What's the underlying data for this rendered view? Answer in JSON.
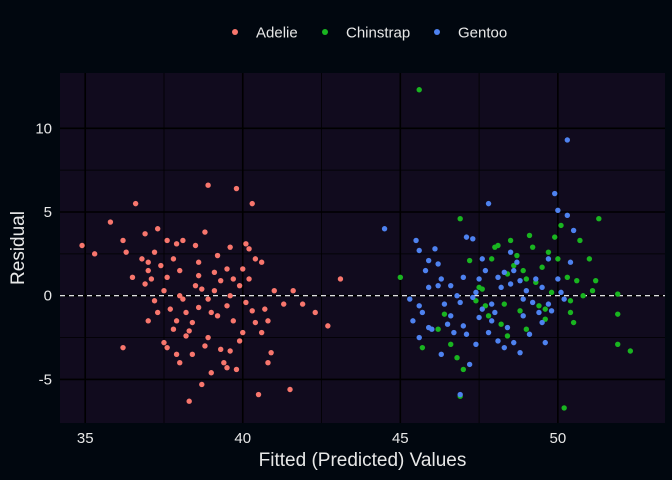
{
  "chart_data": {
    "type": "scatter",
    "xlabel": "Fitted (Predicted) Values",
    "ylabel": "Residual",
    "xlim": [
      34.2,
      53.4
    ],
    "ylim": [
      -7.6,
      13.3
    ],
    "x_ticks": [
      35,
      40,
      45,
      50
    ],
    "y_ticks": [
      -5,
      0,
      5,
      10
    ],
    "x_tick_labels": [
      "35",
      "40",
      "45",
      "50"
    ],
    "y_tick_labels": [
      "-5",
      "0",
      "5",
      "10"
    ],
    "grid": true,
    "legend_position": "top",
    "reference_line": {
      "y": 0,
      "style": "dashed",
      "color": "#ffffff"
    },
    "colors": {
      "page_background": "#01070f",
      "panel_background": "#110b1e",
      "grid": "#000000",
      "text": "#e8e8e8"
    },
    "series": [
      {
        "name": "Adelie",
        "color": "#f8766d",
        "points": [
          [
            34.9,
            3.0
          ],
          [
            35.3,
            2.5
          ],
          [
            35.8,
            4.4
          ],
          [
            36.2,
            3.3
          ],
          [
            36.6,
            5.5
          ],
          [
            36.3,
            2.6
          ],
          [
            36.8,
            2.2
          ],
          [
            37.1,
            1.0
          ],
          [
            37.0,
            2.0
          ],
          [
            36.9,
            3.7
          ],
          [
            37.3,
            4.0
          ],
          [
            37.6,
            3.3
          ],
          [
            37.9,
            3.1
          ],
          [
            36.2,
            -3.1
          ],
          [
            36.5,
            1.1
          ],
          [
            36.9,
            0.7
          ],
          [
            37.2,
            -0.3
          ],
          [
            37.5,
            0.3
          ],
          [
            37.7,
            -0.8
          ],
          [
            37.9,
            -1.5
          ],
          [
            37.3,
            -1.0
          ],
          [
            37.4,
            1.8
          ],
          [
            37.8,
            2.2
          ],
          [
            38.0,
            1.5
          ],
          [
            38.1,
            -0.2
          ],
          [
            37.8,
            -2.0
          ],
          [
            37.6,
            -3.1
          ],
          [
            37.9,
            -3.5
          ],
          [
            38.2,
            -2.4
          ],
          [
            38.4,
            -1.6
          ],
          [
            38.6,
            -0.7
          ],
          [
            38.9,
            -0.2
          ],
          [
            39.1,
            0.3
          ],
          [
            39.3,
            0.9
          ],
          [
            38.5,
            3.0
          ],
          [
            38.8,
            3.8
          ],
          [
            38.9,
            6.6
          ],
          [
            38.6,
            2.0
          ],
          [
            39.2,
            2.4
          ],
          [
            39.5,
            1.6
          ],
          [
            38.3,
            -6.3
          ],
          [
            38.7,
            -5.3
          ],
          [
            39.0,
            -4.6
          ],
          [
            39.4,
            -4.0
          ],
          [
            39.6,
            -3.3
          ],
          [
            39.8,
            -4.4
          ],
          [
            39.9,
            -2.7
          ],
          [
            39.7,
            -1.5
          ],
          [
            39.5,
            -0.6
          ],
          [
            39.9,
            0.6
          ],
          [
            40.2,
            1.0
          ],
          [
            40.4,
            2.2
          ],
          [
            40.1,
            3.1
          ],
          [
            39.6,
            2.9
          ],
          [
            39.8,
            6.4
          ],
          [
            40.3,
            5.5
          ],
          [
            40.0,
            1.6
          ],
          [
            40.1,
            -0.4
          ],
          [
            40.4,
            -1.6
          ],
          [
            40.0,
            -2.2
          ],
          [
            40.5,
            -5.9
          ],
          [
            40.8,
            -4.0
          ],
          [
            40.9,
            -3.4
          ],
          [
            40.6,
            -2.2
          ],
          [
            40.7,
            -0.8
          ],
          [
            41.0,
            0.3
          ],
          [
            41.3,
            -0.5
          ],
          [
            41.6,
            0.3
          ],
          [
            41.9,
            -0.5
          ],
          [
            42.3,
            -1.0
          ],
          [
            42.7,
            -1.8
          ],
          [
            43.1,
            1.0
          ],
          [
            41.5,
            -5.6
          ],
          [
            40.2,
            2.8
          ],
          [
            40.6,
            2.0
          ],
          [
            37.0,
            -1.5
          ],
          [
            37.2,
            2.6
          ],
          [
            38.0,
            -4.0
          ],
          [
            38.6,
            1.2
          ],
          [
            39.0,
            -1.0
          ],
          [
            38.3,
            -2.1
          ],
          [
            38.1,
            3.3
          ],
          [
            37.5,
            -2.8
          ],
          [
            38.8,
            -3.0
          ],
          [
            39.2,
            -1.2
          ],
          [
            38.5,
            0.6
          ],
          [
            37.0,
            1.5
          ],
          [
            39.7,
            1.0
          ],
          [
            40.3,
            -0.9
          ],
          [
            38.7,
            0.4
          ],
          [
            39.3,
            -3.2
          ],
          [
            39.1,
            1.4
          ],
          [
            38.4,
            -3.5
          ],
          [
            37.6,
            1.1
          ],
          [
            40.8,
            -1.5
          ],
          [
            38.2,
            -1.0
          ],
          [
            38.9,
            -2.5
          ],
          [
            39.5,
            -4.3
          ],
          [
            38.0,
            0.0
          ],
          [
            39.6,
            0.0
          ]
        ]
      },
      {
        "name": "Chinstrap",
        "color": "#19b520",
        "points": [
          [
            45.6,
            12.3
          ],
          [
            45.0,
            1.1
          ],
          [
            45.7,
            -3.1
          ],
          [
            46.2,
            -2.0
          ],
          [
            46.6,
            -2.9
          ],
          [
            46.9,
            4.6
          ],
          [
            46.8,
            -3.7
          ],
          [
            47.0,
            -4.4
          ],
          [
            46.9,
            -6.0
          ],
          [
            47.2,
            2.1
          ],
          [
            47.5,
            0.5
          ],
          [
            47.7,
            -0.6
          ],
          [
            47.9,
            2.2
          ],
          [
            48.1,
            3.0
          ],
          [
            48.2,
            -1.7
          ],
          [
            48.3,
            -0.5
          ],
          [
            48.4,
            1.3
          ],
          [
            48.5,
            3.3
          ],
          [
            48.6,
            1.8
          ],
          [
            48.7,
            2.4
          ],
          [
            48.9,
            1.5
          ],
          [
            49.0,
            -2.0
          ],
          [
            49.1,
            3.6
          ],
          [
            49.2,
            2.9
          ],
          [
            49.4,
            -0.6
          ],
          [
            49.5,
            1.7
          ],
          [
            49.6,
            -1.4
          ],
          [
            49.8,
            0.2
          ],
          [
            49.9,
            3.5
          ],
          [
            50.0,
            2.2
          ],
          [
            50.1,
            4.2
          ],
          [
            50.2,
            -6.7
          ],
          [
            50.4,
            -1.0
          ],
          [
            50.5,
            -1.6
          ],
          [
            50.6,
            0.9
          ],
          [
            50.7,
            3.3
          ],
          [
            51.0,
            2.2
          ],
          [
            51.3,
            4.6
          ],
          [
            51.2,
            0.9
          ],
          [
            51.9,
            0.1
          ],
          [
            51.9,
            -1.1
          ],
          [
            51.9,
            -2.9
          ],
          [
            52.3,
            -3.3
          ],
          [
            50.4,
            -0.3
          ],
          [
            49.0,
            1.0
          ],
          [
            48.8,
            -0.9
          ],
          [
            47.8,
            -1.2
          ],
          [
            47.4,
            -0.3
          ],
          [
            50.8,
            0.0
          ],
          [
            49.7,
            2.6
          ],
          [
            48.4,
            -2.4
          ],
          [
            47.6,
            0.4
          ],
          [
            50.3,
            1.1
          ],
          [
            49.3,
            0.8
          ],
          [
            48.0,
            2.9
          ],
          [
            51.1,
            0.3
          ],
          [
            46.4,
            -1.1
          ],
          [
            49.6,
            -0.8
          ]
        ]
      },
      {
        "name": "Gentoo",
        "color": "#4e82f0",
        "points": [
          [
            44.5,
            4.0
          ],
          [
            45.3,
            -0.2
          ],
          [
            45.6,
            -0.6
          ],
          [
            45.6,
            2.7
          ],
          [
            45.5,
            3.3
          ],
          [
            45.6,
            -2.5
          ],
          [
            45.7,
            -1.0
          ],
          [
            45.8,
            1.5
          ],
          [
            45.9,
            0.5
          ],
          [
            46.1,
            2.8
          ],
          [
            46.2,
            1.9
          ],
          [
            46.3,
            -3.5
          ],
          [
            46.5,
            -1.7
          ],
          [
            46.6,
            -1.2
          ],
          [
            46.8,
            0.0
          ],
          [
            46.9,
            -0.4
          ],
          [
            47.0,
            1.1
          ],
          [
            47.1,
            -2.3
          ],
          [
            47.2,
            -4.1
          ],
          [
            47.3,
            3.4
          ],
          [
            47.4,
            0.2
          ],
          [
            47.5,
            1.0
          ],
          [
            47.6,
            2.2
          ],
          [
            47.7,
            1.5
          ],
          [
            47.8,
            5.5
          ],
          [
            47.9,
            -0.5
          ],
          [
            48.0,
            -1.0
          ],
          [
            48.1,
            -2.7
          ],
          [
            48.2,
            0.5
          ],
          [
            48.3,
            -3.1
          ],
          [
            48.4,
            -1.9
          ],
          [
            48.5,
            0.7
          ],
          [
            48.6,
            1.5
          ],
          [
            48.7,
            2.0
          ],
          [
            48.8,
            -3.4
          ],
          [
            48.9,
            -1.2
          ],
          [
            49.0,
            0.3
          ],
          [
            49.1,
            -2.3
          ],
          [
            49.3,
            1.0
          ],
          [
            49.4,
            -1.0
          ],
          [
            49.5,
            0.5
          ],
          [
            49.6,
            -2.8
          ],
          [
            49.7,
            2.2
          ],
          [
            49.8,
            -0.9
          ],
          [
            49.9,
            6.1
          ],
          [
            50.0,
            5.1
          ],
          [
            50.1,
            0.2
          ],
          [
            50.2,
            -0.2
          ],
          [
            50.3,
            4.8
          ],
          [
            50.3,
            9.3
          ],
          [
            50.4,
            2.0
          ],
          [
            50.5,
            3.9
          ],
          [
            50.0,
            1.0
          ],
          [
            45.9,
            -1.9
          ],
          [
            46.2,
            0.6
          ],
          [
            46.7,
            -2.2
          ],
          [
            47.3,
            -0.1
          ],
          [
            47.6,
            -0.8
          ],
          [
            47.9,
            -1.5
          ],
          [
            48.5,
            2.6
          ],
          [
            49.2,
            -0.4
          ],
          [
            46.0,
            -2.0
          ],
          [
            46.4,
            -0.5
          ],
          [
            47.0,
            -1.8
          ],
          [
            47.4,
            -2.9
          ],
          [
            48.1,
            1.1
          ],
          [
            48.8,
            0.9
          ],
          [
            49.5,
            -1.6
          ],
          [
            46.9,
            -5.9
          ],
          [
            45.4,
            -1.5
          ],
          [
            45.9,
            2.1
          ],
          [
            46.6,
            0.6
          ],
          [
            47.1,
            3.5
          ],
          [
            47.8,
            -2.2
          ],
          [
            48.3,
            1.4
          ],
          [
            48.9,
            -0.2
          ],
          [
            49.7,
            -0.5
          ],
          [
            46.3,
            1.0
          ],
          [
            47.5,
            -1.3
          ],
          [
            48.6,
            -2.8
          ]
        ]
      }
    ]
  }
}
